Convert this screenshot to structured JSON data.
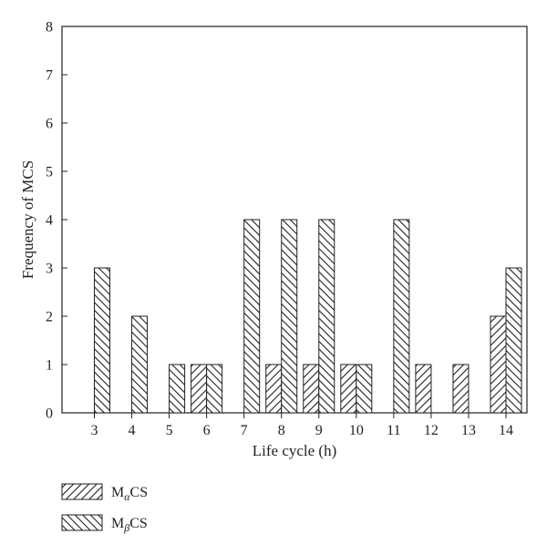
{
  "chart_data": {
    "type": "bar",
    "title": "",
    "xlabel": "Life cycle (h)",
    "ylabel": "Frequency of MCS",
    "categories": [
      "3",
      "4",
      "5",
      "6",
      "7",
      "8",
      "9",
      "10",
      "11",
      "12",
      "13",
      "14"
    ],
    "ylim": [
      0,
      8
    ],
    "yticks": [
      0,
      1,
      2,
      3,
      4,
      5,
      6,
      7,
      8
    ],
    "grid": false,
    "legend_position": "bottom-left, below plot",
    "series": [
      {
        "name": "MαCS",
        "name_base": "M",
        "name_sub": "α",
        "name_suffix": "CS",
        "hatch": "forward-diagonal",
        "values": [
          0,
          0,
          0,
          1,
          0,
          1,
          1,
          1,
          0,
          1,
          1,
          2
        ]
      },
      {
        "name": "MβCS",
        "name_base": "M",
        "name_sub": "β",
        "name_suffix": "CS",
        "hatch": "back-diagonal",
        "values": [
          3,
          2,
          1,
          1,
          4,
          4,
          4,
          1,
          4,
          0,
          0,
          3
        ]
      }
    ],
    "colors": {
      "stroke": "#231f20",
      "background": "#ffffff"
    }
  }
}
